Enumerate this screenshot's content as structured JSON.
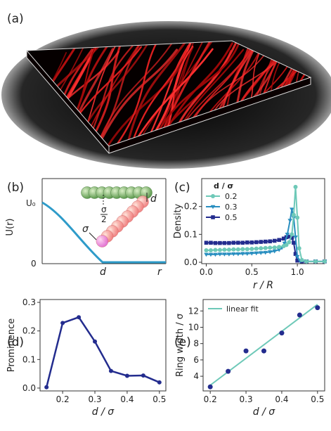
{
  "panel_labels": {
    "a": "(a)",
    "b": "(b)",
    "c": "(c)",
    "d": "(d)",
    "e": "(e)"
  },
  "panel_b": {
    "ylabel": "U(r)",
    "y_ticks": [
      "U₀",
      "0"
    ],
    "x_ticks": [
      "d",
      "r"
    ],
    "annotations": {
      "d": "d",
      "sigma": "σ",
      "half_sigma_num": "σ",
      "half_sigma_den": "2"
    },
    "colors": {
      "curve": "#2e9bc9"
    }
  },
  "chart_data": [
    {
      "type": "line",
      "panel": "c",
      "xlabel": "r / R",
      "ylabel": "Density",
      "xlim": [
        -0.05,
        1.3
      ],
      "ylim": [
        -0.005,
        0.3
      ],
      "x_ticks": [
        "0.0",
        "0.5",
        "1.0"
      ],
      "y_ticks": [
        "0.0",
        "0.1",
        "0.2"
      ],
      "legend_title": "d / σ",
      "legend_placement": "top-left",
      "series": [
        {
          "name": "0.2",
          "color": "#6ec9b8",
          "marker": "circle",
          "x": [
            0,
            0.05,
            0.1,
            0.15,
            0.2,
            0.25,
            0.3,
            0.35,
            0.4,
            0.45,
            0.5,
            0.55,
            0.6,
            0.65,
            0.7,
            0.75,
            0.8,
            0.85,
            0.88,
            0.91,
            0.94,
            0.96,
            0.98,
            1.0,
            1.02,
            1.05,
            1.1,
            1.2,
            1.3
          ],
          "y": [
            0.043,
            0.043,
            0.044,
            0.044,
            0.045,
            0.045,
            0.046,
            0.046,
            0.047,
            0.047,
            0.048,
            0.049,
            0.05,
            0.051,
            0.052,
            0.053,
            0.055,
            0.058,
            0.062,
            0.072,
            0.1,
            0.17,
            0.27,
            0.16,
            0.05,
            0.008,
            0.003,
            0.003,
            0.003
          ]
        },
        {
          "name": "0.3",
          "color": "#2a8fc0",
          "marker": "triangle",
          "x": [
            0,
            0.05,
            0.1,
            0.15,
            0.2,
            0.25,
            0.3,
            0.35,
            0.4,
            0.45,
            0.5,
            0.55,
            0.6,
            0.65,
            0.7,
            0.75,
            0.8,
            0.83,
            0.86,
            0.89,
            0.92,
            0.94,
            0.96,
            0.98,
            1.0,
            1.03,
            1.1,
            1.2,
            1.3
          ],
          "y": [
            0.028,
            0.028,
            0.028,
            0.029,
            0.029,
            0.029,
            0.03,
            0.03,
            0.031,
            0.031,
            0.032,
            0.033,
            0.034,
            0.035,
            0.037,
            0.04,
            0.045,
            0.052,
            0.068,
            0.1,
            0.15,
            0.19,
            0.16,
            0.09,
            0.02,
            0.005,
            0.003,
            0.003,
            0.003
          ]
        },
        {
          "name": "0.5",
          "color": "#232c8e",
          "marker": "square",
          "x": [
            0,
            0.05,
            0.1,
            0.15,
            0.2,
            0.25,
            0.3,
            0.35,
            0.4,
            0.45,
            0.5,
            0.55,
            0.6,
            0.65,
            0.7,
            0.75,
            0.8,
            0.85,
            0.88,
            0.91,
            0.94,
            0.96,
            0.98,
            1.0,
            1.05,
            1.1,
            1.2,
            1.3
          ],
          "y": [
            0.07,
            0.07,
            0.069,
            0.069,
            0.069,
            0.069,
            0.07,
            0.07,
            0.07,
            0.071,
            0.071,
            0.072,
            0.073,
            0.074,
            0.075,
            0.077,
            0.08,
            0.085,
            0.09,
            0.092,
            0.088,
            0.07,
            0.03,
            0.006,
            0.003,
            0.003,
            0.003,
            0.003
          ]
        }
      ]
    },
    {
      "type": "line",
      "panel": "d",
      "xlabel": "d / σ",
      "ylabel": "Prominence",
      "xlim": [
        0.13,
        0.52
      ],
      "ylim": [
        -0.01,
        0.31
      ],
      "x_ticks": [
        0.2,
        0.3,
        0.4,
        0.5
      ],
      "y_ticks": [
        0.0,
        0.1,
        0.2,
        0.3
      ],
      "color": "#232c8e",
      "x": [
        0.15,
        0.2,
        0.25,
        0.3,
        0.35,
        0.4,
        0.45,
        0.5
      ],
      "y": [
        0.003,
        0.228,
        0.248,
        0.163,
        0.06,
        0.043,
        0.044,
        0.02
      ]
    },
    {
      "type": "scatter",
      "panel": "e",
      "xlabel": "d / σ",
      "ylabel": "Ring width / σ",
      "xlim": [
        0.18,
        0.52
      ],
      "ylim": [
        2.2,
        13.4
      ],
      "x_ticks": [
        0.2,
        0.3,
        0.4,
        0.5
      ],
      "y_ticks": [
        4,
        6,
        8,
        10,
        12
      ],
      "point_color": "#232c8e",
      "fit_color": "#6ec9b8",
      "fit_label": "linear fit",
      "legend_placement": "top-left",
      "x": [
        0.2,
        0.25,
        0.3,
        0.35,
        0.4,
        0.45,
        0.5
      ],
      "y": [
        2.7,
        4.6,
        7.1,
        7.1,
        9.3,
        11.5,
        12.4
      ],
      "fit_line": {
        "x": [
          0.2,
          0.5
        ],
        "y": [
          2.9,
          12.8
        ]
      }
    }
  ]
}
